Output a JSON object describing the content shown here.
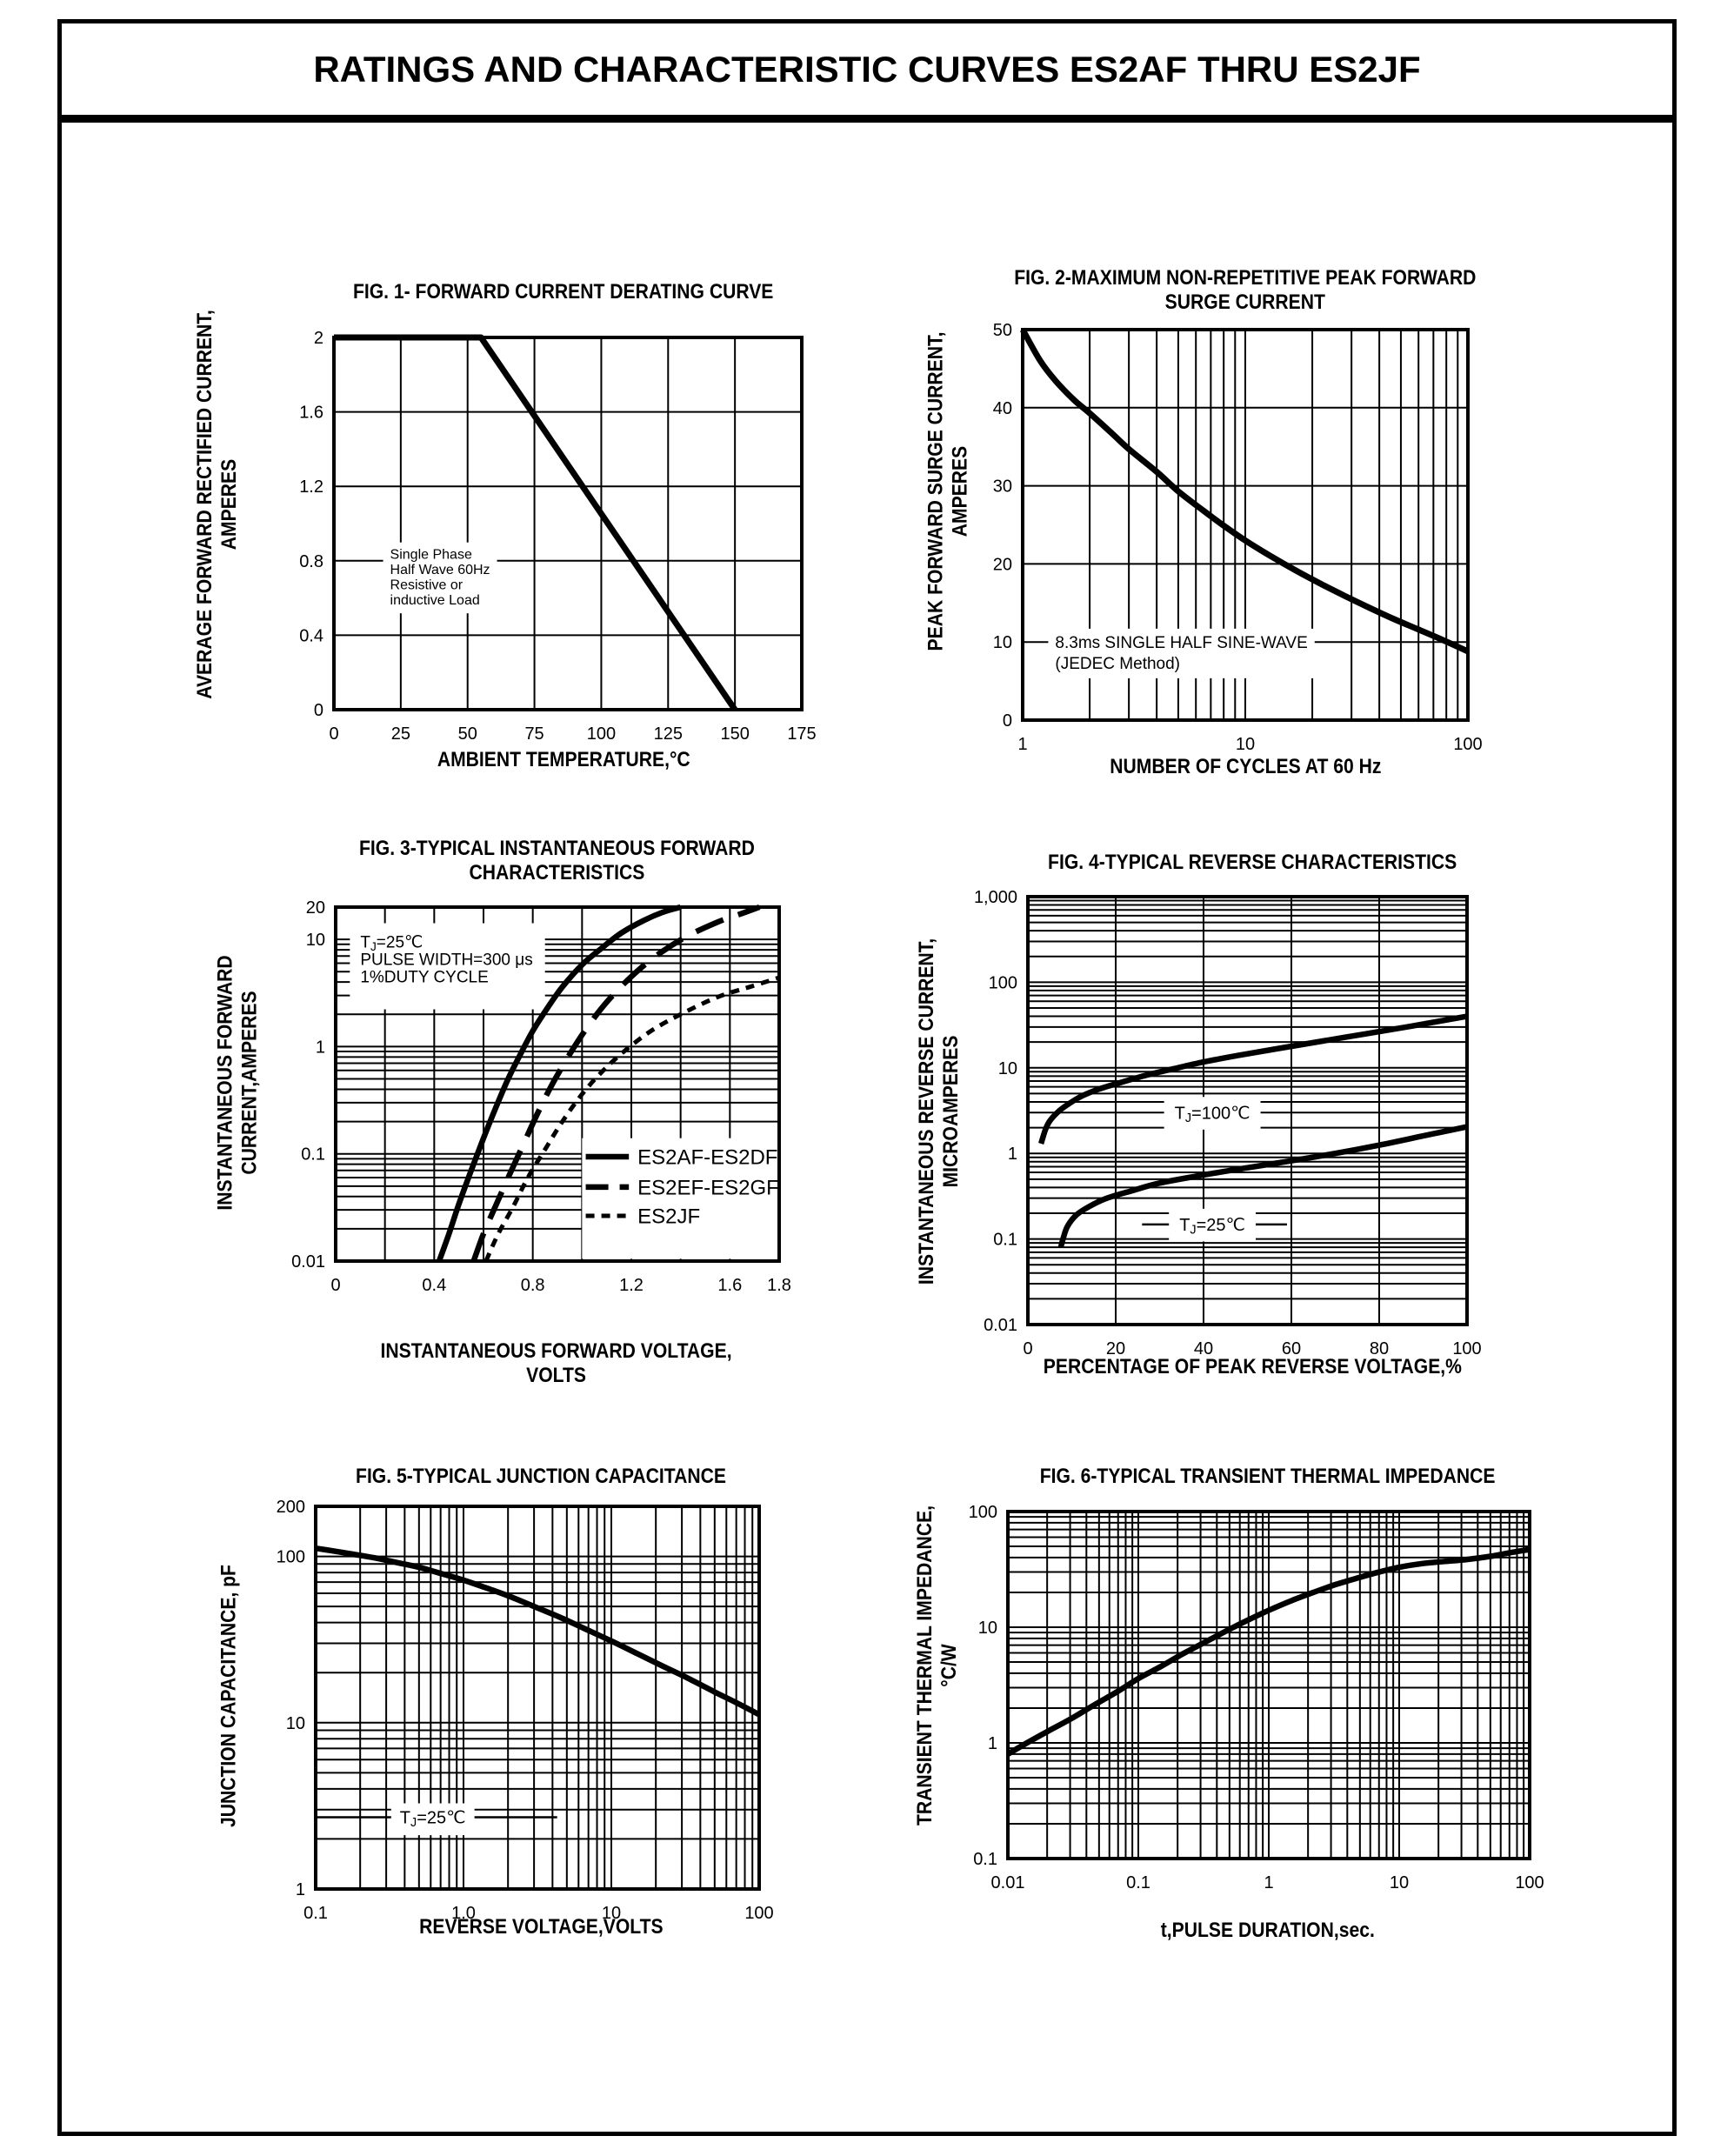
{
  "page": {
    "title": "RATINGS AND CHARACTERISTIC CURVES ES2AF THRU ES2JF"
  },
  "chart_data": [
    {
      "id": "fig1",
      "type": "line",
      "title": "FIG. 1- FORWARD CURRENT DERATING CURVE",
      "xlabel": "AMBIENT TEMPERATURE,°C",
      "ylabel": "AVERAGE FORWARD RECTIFIED CURRENT,\nAMPERES",
      "x_axis": {
        "scale": "linear",
        "min": 0,
        "max": 175,
        "grid_step": 25,
        "ticks": [
          0,
          25,
          50,
          75,
          100,
          125,
          150,
          175
        ],
        "tick_labels": [
          "0",
          "25",
          "50",
          "75",
          "100",
          "125",
          "150",
          "175"
        ]
      },
      "y_axis": {
        "scale": "linear",
        "min": 0,
        "max": 2,
        "grid_step": 0.4,
        "ticks": [
          0,
          0.4,
          0.8,
          1.2,
          1.6,
          2
        ],
        "tick_labels": [
          "0",
          "0.4",
          "0.8",
          "1.2",
          "1.6",
          "2"
        ]
      },
      "stroke_width": 7,
      "series": [
        {
          "name": "forward-current-derating",
          "style": "solid",
          "smooth": false,
          "points": [
            [
              0,
              2
            ],
            [
              55,
              2
            ],
            [
              150,
              0
            ]
          ]
        }
      ],
      "annotations": [
        {
          "anchor": "left",
          "x": 21,
          "y": 0.836,
          "font": 16,
          "lh": 17.5,
          "pad": [
            6,
            8,
            6,
            8
          ],
          "lines": [
            "Single Phase",
            "Half Wave 60Hz",
            "Resistive or",
            "inductive Load"
          ]
        }
      ],
      "legend": null
    },
    {
      "id": "fig2",
      "type": "line",
      "title": "FIG. 2-MAXIMUM NON-REPETITIVE PEAK FORWARD\nSURGE CURRENT",
      "xlabel": "NUMBER OF CYCLES AT 60 Hz",
      "ylabel": "PEAK  FORWARD SURGE CURRENT,\nAMPERES",
      "x_axis": {
        "scale": "log",
        "min": 1,
        "max": 100,
        "ticks": [
          1,
          10,
          100
        ],
        "tick_labels": [
          "1",
          "10",
          "100"
        ]
      },
      "y_axis": {
        "scale": "linear",
        "min": 0,
        "max": 50,
        "grid_step": 10,
        "ticks": [
          0,
          10,
          20,
          30,
          40,
          50
        ],
        "tick_labels": [
          "0",
          "10",
          "20",
          "30",
          "40",
          "50"
        ]
      },
      "stroke_width": 7,
      "series": [
        {
          "name": "peak-surge-current",
          "style": "solid",
          "smooth": true,
          "points": [
            [
              1,
              50
            ],
            [
              1.2,
              46
            ],
            [
              1.4,
              43.5
            ],
            [
              1.7,
              41
            ],
            [
              2,
              39.3
            ],
            [
              2.5,
              36.8
            ],
            [
              3,
              34.7
            ],
            [
              4,
              31.8
            ],
            [
              5,
              29.3
            ],
            [
              6.5,
              26.8
            ],
            [
              8,
              24.9
            ],
            [
              10,
              23
            ],
            [
              13,
              21
            ],
            [
              17,
              19.1
            ],
            [
              22,
              17.4
            ],
            [
              28,
              15.9
            ],
            [
              36,
              14.4
            ],
            [
              46,
              13
            ],
            [
              60,
              11.6
            ],
            [
              78,
              10.2
            ],
            [
              100,
              8.8
            ]
          ]
        }
      ],
      "annotations": [
        {
          "anchor": "left",
          "x": 1.4,
          "y": 10,
          "font": 19,
          "lh": 24,
          "pad": [
            6,
            8,
            6,
            8
          ],
          "lines": [
            "8.3ms SINGLE HALF SINE-WAVE",
            "(JEDEC Method)"
          ]
        }
      ],
      "legend": null
    },
    {
      "id": "fig3",
      "type": "line",
      "title": "FIG. 3-TYPICAL INSTANTANEOUS FORWARD\nCHARACTERISTICS",
      "xlabel": "INSTANTANEOUS FORWARD VOLTAGE,\nVOLTS",
      "ylabel": "INSTANTANEOUS FORWARD\nCURRENT,AMPERES",
      "x_axis": {
        "scale": "linear",
        "min": 0,
        "max": 1.8,
        "grid_step": 0.2,
        "ticks": [
          0,
          0.4,
          0.8,
          1.2,
          1.6,
          1.8
        ],
        "tick_labels": [
          "0",
          "0.4",
          "0.8",
          "1.2",
          "1.6",
          "1.8"
        ]
      },
      "y_axis": {
        "scale": "log",
        "min": 0.01,
        "max": 20,
        "ticks": [
          0.01,
          0.1,
          1,
          10,
          20
        ],
        "tick_labels": [
          "0.01",
          "0.1",
          "1",
          "10",
          "20"
        ]
      },
      "stroke_width": 6.5,
      "series": [
        {
          "name": "ES2AF-ES2DF",
          "style": "solid",
          "smooth": true,
          "points": [
            [
              0.42,
              0.01
            ],
            [
              0.46,
              0.018
            ],
            [
              0.5,
              0.034
            ],
            [
              0.55,
              0.07
            ],
            [
              0.6,
              0.14
            ],
            [
              0.65,
              0.27
            ],
            [
              0.7,
              0.5
            ],
            [
              0.75,
              0.85
            ],
            [
              0.8,
              1.4
            ],
            [
              0.86,
              2.3
            ],
            [
              0.92,
              3.6
            ],
            [
              1.0,
              5.8
            ],
            [
              1.08,
              8.3
            ],
            [
              1.16,
              11.5
            ],
            [
              1.25,
              15
            ],
            [
              1.33,
              18
            ],
            [
              1.4,
              20
            ]
          ]
        },
        {
          "name": "ES2EF-ES2GF",
          "style": "dashed",
          "smooth": true,
          "points": [
            [
              0.56,
              0.01
            ],
            [
              0.6,
              0.018
            ],
            [
              0.65,
              0.033
            ],
            [
              0.7,
              0.06
            ],
            [
              0.76,
              0.12
            ],
            [
              0.82,
              0.24
            ],
            [
              0.88,
              0.45
            ],
            [
              0.95,
              0.85
            ],
            [
              1.02,
              1.5
            ],
            [
              1.1,
              2.6
            ],
            [
              1.2,
              4.5
            ],
            [
              1.3,
              7
            ],
            [
              1.42,
              10.5
            ],
            [
              1.55,
              14.5
            ],
            [
              1.65,
              17.5
            ],
            [
              1.72,
              20
            ]
          ]
        },
        {
          "name": "ES2JF",
          "style": "dotted",
          "smooth": true,
          "points": [
            [
              0.61,
              0.01
            ],
            [
              0.66,
              0.018
            ],
            [
              0.72,
              0.032
            ],
            [
              0.78,
              0.06
            ],
            [
              0.85,
              0.11
            ],
            [
              0.92,
              0.2
            ],
            [
              1.0,
              0.36
            ],
            [
              1.08,
              0.58
            ],
            [
              1.17,
              0.9
            ],
            [
              1.28,
              1.4
            ],
            [
              1.4,
              2.0
            ],
            [
              1.55,
              2.9
            ],
            [
              1.68,
              3.6
            ],
            [
              1.8,
              4.4
            ]
          ]
        }
      ],
      "annotations": [
        {
          "anchor": "left",
          "x": 0.1,
          "y": 9.5,
          "font": 19,
          "lh": 20,
          "pad": [
            12,
            14,
            26,
            12
          ],
          "lines": [
            "TJ=25℃",
            "PULSE WIDTH=300 μs",
            "1%DUTY CYCLE"
          ]
        }
      ],
      "legend": {
        "box": [
          1.0,
          0.0105,
          1.8,
          0.14
        ],
        "sample_x": [
          1.015,
          1.19
        ],
        "text_x": 1.225,
        "font": 24,
        "entries": [
          {
            "style": "solid",
            "y": 0.094,
            "label": "ES2AF-ES2DF"
          },
          {
            "style": "dashed",
            "y": 0.049,
            "label": "ES2EF-ES2GF"
          },
          {
            "style": "dotted",
            "y": 0.0264,
            "label": "ES2JF"
          }
        ]
      }
    },
    {
      "id": "fig4",
      "type": "line",
      "title": "FIG. 4-TYPICAL REVERSE CHARACTERISTICS",
      "xlabel": "PERCENTAGE OF PEAK REVERSE VOLTAGE,%",
      "ylabel": "INSTANTANEOUS REVERSE CURRENT,\nMICROAMPERES",
      "x_axis": {
        "scale": "linear",
        "min": 0,
        "max": 100,
        "grid_step": 20,
        "ticks": [
          0,
          20,
          40,
          60,
          80,
          100
        ],
        "tick_labels": [
          "0",
          "20",
          "40",
          "60",
          "80",
          "100"
        ]
      },
      "y_axis": {
        "scale": "log",
        "min": 0.01,
        "max": 1000,
        "ticks": [
          0.01,
          0.1,
          1,
          10,
          100,
          1000
        ],
        "tick_labels": [
          "0.01",
          "0.1",
          "1",
          "10",
          "100",
          "1,000"
        ]
      },
      "stroke_width": 6.5,
      "series": [
        {
          "name": "TJ=100C",
          "style": "solid",
          "smooth": true,
          "points": [
            [
              3,
              1.3
            ],
            [
              4,
              1.9
            ],
            [
              5,
              2.4
            ],
            [
              7,
              3.1
            ],
            [
              9,
              3.7
            ],
            [
              12,
              4.6
            ],
            [
              16,
              5.6
            ],
            [
              21,
              6.7
            ],
            [
              27,
              8.2
            ],
            [
              33,
              9.7
            ],
            [
              40,
              11.7
            ],
            [
              48,
              14
            ],
            [
              57,
              16.8
            ],
            [
              67,
              20.5
            ],
            [
              77,
              25
            ],
            [
              87,
              30.5
            ],
            [
              100,
              40
            ]
          ]
        },
        {
          "name": "TJ=25C",
          "style": "solid",
          "smooth": true,
          "points": [
            [
              7.5,
              0.08
            ],
            [
              8,
              0.1
            ],
            [
              9,
              0.14
            ],
            [
              11,
              0.19
            ],
            [
              14,
              0.24
            ],
            [
              18,
              0.3
            ],
            [
              24,
              0.37
            ],
            [
              30,
              0.45
            ],
            [
              40,
              0.56
            ],
            [
              50,
              0.68
            ],
            [
              60,
              0.82
            ],
            [
              70,
              1.0
            ],
            [
              80,
              1.25
            ],
            [
              90,
              1.6
            ],
            [
              100,
              2.05
            ]
          ]
        }
      ],
      "annotations": [
        {
          "anchor": "center",
          "x": 42,
          "y": 3,
          "font": 20,
          "pad": [
            8,
            12,
            5,
            12
          ],
          "lines": [
            "TJ=100℃"
          ]
        },
        {
          "anchor": "center",
          "x": 42,
          "y": 0.148,
          "font": 20,
          "pad": [
            8,
            12,
            5,
            12
          ],
          "leader": [
            26,
            59
          ],
          "lines": [
            "TJ=25℃"
          ]
        }
      ],
      "legend": null
    },
    {
      "id": "fig5",
      "type": "line",
      "title": "FIG. 5-TYPICAL JUNCTION CAPACITANCE",
      "xlabel": "REVERSE VOLTAGE,VOLTS",
      "ylabel": "JUNCTION CAPACITANCE, pF",
      "x_axis": {
        "scale": "log",
        "min": 0.1,
        "max": 100,
        "ticks": [
          0.1,
          1,
          10,
          100
        ],
        "tick_labels": [
          "0.1",
          "1.0",
          "10",
          "100"
        ]
      },
      "y_axis": {
        "scale": "log",
        "min": 1,
        "max": 200,
        "ticks": [
          1,
          10,
          100,
          200
        ],
        "tick_labels": [
          "1",
          "10",
          "100",
          "200"
        ]
      },
      "stroke_width": 6.5,
      "series": [
        {
          "name": "junction-capacitance",
          "style": "solid",
          "smooth": true,
          "points": [
            [
              0.1,
              112
            ],
            [
              0.13,
              108
            ],
            [
              0.18,
              103
            ],
            [
              0.25,
              98
            ],
            [
              0.35,
              92
            ],
            [
              0.5,
              86
            ],
            [
              0.7,
              79
            ],
            [
              1,
              72
            ],
            [
              1.4,
              65
            ],
            [
              2,
              58
            ],
            [
              3,
              50
            ],
            [
              4.5,
              43
            ],
            [
              6.5,
              37
            ],
            [
              10,
              31
            ],
            [
              15,
              26
            ],
            [
              22,
              22
            ],
            [
              33,
              18.5
            ],
            [
              50,
              15.3
            ],
            [
              70,
              13.2
            ],
            [
              100,
              11.2
            ]
          ]
        }
      ],
      "annotations": [
        {
          "anchor": "center",
          "x": 0.62,
          "y": 2.7,
          "font": 20,
          "pad": [
            6,
            10,
            6,
            10
          ],
          "leader": [
            0.1,
            4.3
          ],
          "lines": [
            "TJ=25℃"
          ]
        }
      ],
      "legend": null
    },
    {
      "id": "fig6",
      "type": "line",
      "title": "FIG. 6-TYPICAL TRANSIENT THERMAL IMPEDANCE",
      "xlabel": "t,PULSE DURATION,sec.",
      "ylabel": "TRANSIENT THERMAL IMPEDANCE,\n°C/W",
      "x_axis": {
        "scale": "log",
        "min": 0.01,
        "max": 100,
        "ticks": [
          0.01,
          0.1,
          1,
          10,
          100
        ],
        "tick_labels": [
          "0.01",
          "0.1",
          "1",
          "10",
          "100"
        ]
      },
      "y_axis": {
        "scale": "log",
        "min": 0.1,
        "max": 100,
        "ticks": [
          0.1,
          1,
          10,
          100
        ],
        "tick_labels": [
          "0.1",
          "1",
          "10",
          "100"
        ]
      },
      "stroke_width": 6.5,
      "series": [
        {
          "name": "transient-thermal-impedance",
          "style": "solid",
          "smooth": true,
          "points": [
            [
              0.01,
              0.8
            ],
            [
              0.014,
              1.0
            ],
            [
              0.02,
              1.25
            ],
            [
              0.03,
              1.6
            ],
            [
              0.045,
              2.1
            ],
            [
              0.07,
              2.8
            ],
            [
              0.1,
              3.6
            ],
            [
              0.15,
              4.6
            ],
            [
              0.22,
              5.9
            ],
            [
              0.33,
              7.5
            ],
            [
              0.5,
              9.6
            ],
            [
              0.7,
              11.6
            ],
            [
              1,
              14
            ],
            [
              1.5,
              17
            ],
            [
              2.2,
              20
            ],
            [
              3.3,
              23.5
            ],
            [
              5,
              27
            ],
            [
              7,
              30
            ],
            [
              10,
              33
            ],
            [
              15,
              35.5
            ],
            [
              22,
              37
            ],
            [
              33,
              38.5
            ],
            [
              50,
              41
            ],
            [
              70,
              44
            ],
            [
              100,
              47
            ]
          ]
        }
      ],
      "annotations": [],
      "legend": null
    }
  ]
}
